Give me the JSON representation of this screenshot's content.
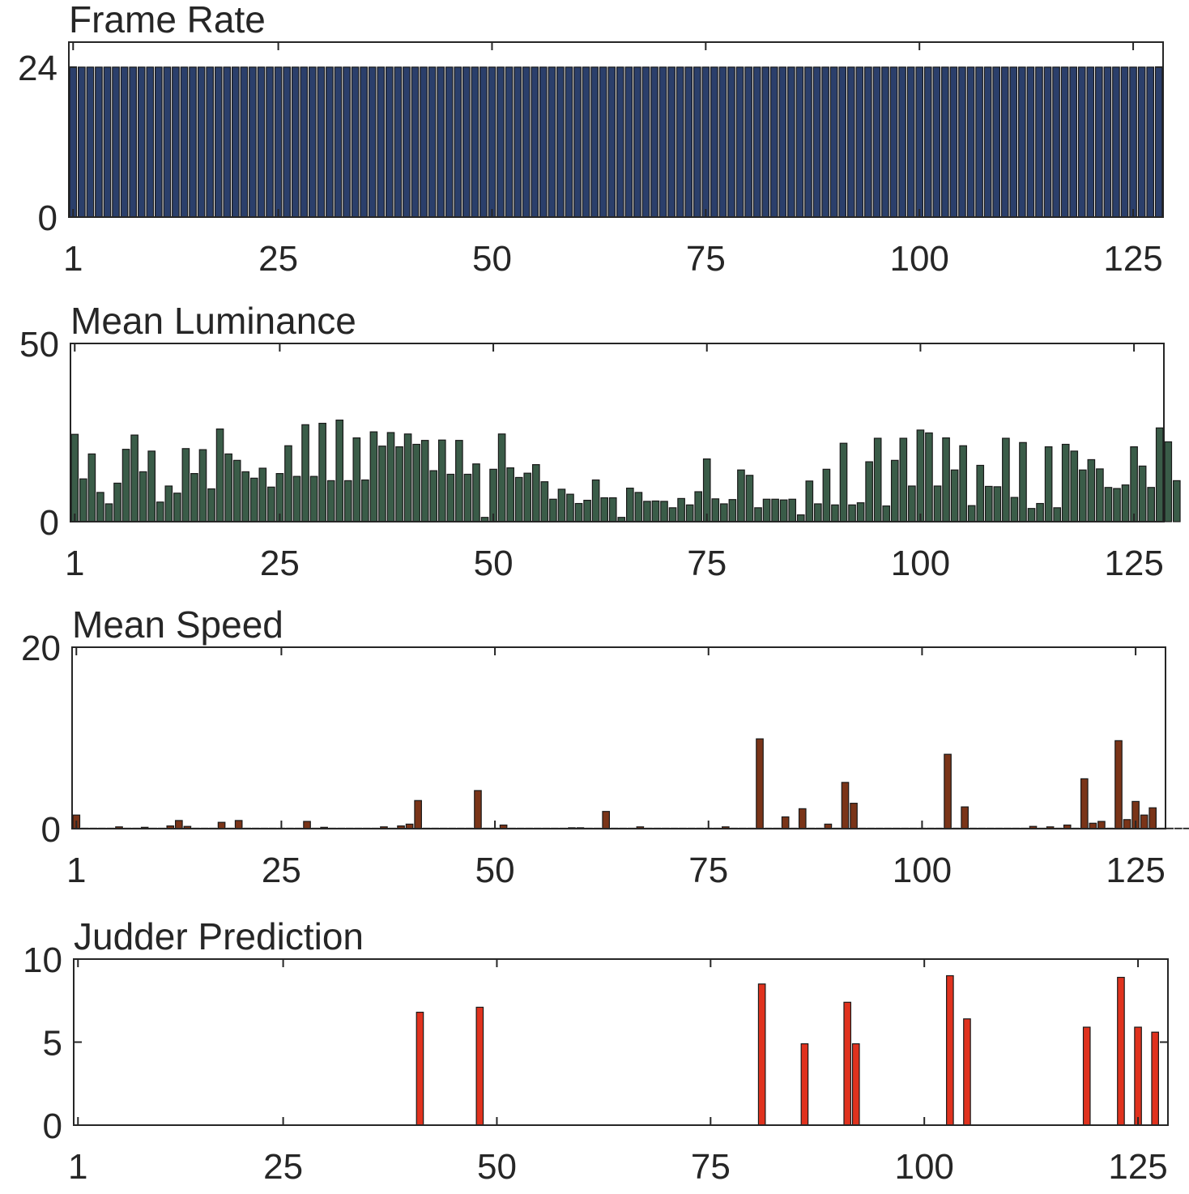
{
  "chart_data": [
    {
      "type": "bar",
      "title": "Frame Rate",
      "xlabel": "",
      "ylabel": "",
      "x_range": [
        1,
        128
      ],
      "ylim": [
        0,
        28
      ],
      "yticks": [
        0,
        24
      ],
      "xticks": [
        1,
        25,
        50,
        75,
        100,
        125
      ],
      "color": "#2b3f6b",
      "values": [
        24,
        24,
        24,
        24,
        24,
        24,
        24,
        24,
        24,
        24,
        24,
        24,
        24,
        24,
        24,
        24,
        24,
        24,
        24,
        24,
        24,
        24,
        24,
        24,
        24,
        24,
        24,
        24,
        24,
        24,
        24,
        24,
        24,
        24,
        24,
        24,
        24,
        24,
        24,
        24,
        24,
        24,
        24,
        24,
        24,
        24,
        24,
        24,
        24,
        24,
        24,
        24,
        24,
        24,
        24,
        24,
        24,
        24,
        24,
        24,
        24,
        24,
        24,
        24,
        24,
        24,
        24,
        24,
        24,
        24,
        24,
        24,
        24,
        24,
        24,
        24,
        24,
        24,
        24,
        24,
        24,
        24,
        24,
        24,
        24,
        24,
        24,
        24,
        24,
        24,
        24,
        24,
        24,
        24,
        24,
        24,
        24,
        24,
        24,
        24,
        24,
        24,
        24,
        24,
        24,
        24,
        24,
        24,
        24,
        24,
        24,
        24,
        24,
        24,
        24,
        24,
        24,
        24,
        24,
        24,
        24,
        24,
        24,
        24,
        24,
        24,
        24,
        24
      ]
    },
    {
      "type": "bar",
      "title": "Mean Luminance",
      "xlabel": "",
      "ylabel": "",
      "x_range": [
        1,
        128
      ],
      "ylim": [
        0,
        50
      ],
      "yticks": [
        0,
        50
      ],
      "xticks": [
        1,
        25,
        50,
        75,
        100,
        125
      ],
      "color": "#3a5c48",
      "values": [
        24.5,
        12,
        19,
        8.2,
        5,
        10.8,
        20.3,
        24.3,
        14,
        19.8,
        5.5,
        10,
        8,
        20.5,
        13.5,
        20.2,
        9.2,
        26,
        19,
        17.2,
        14,
        12.2,
        15,
        9.7,
        13.5,
        21.3,
        12.7,
        27.2,
        12.7,
        27.6,
        11.5,
        28.5,
        11.5,
        23.5,
        11.7,
        25.2,
        21.2,
        25,
        21,
        24.6,
        21.7,
        22.8,
        14.3,
        22.9,
        13.3,
        22.8,
        13.3,
        16.2,
        1.2,
        14.7,
        24.6,
        15.1,
        12.4,
        13.6,
        16,
        11.2,
        6.3,
        9.1,
        7.7,
        5.1,
        6,
        11.7,
        6.7,
        6.7,
        1.2,
        9.4,
        8.2,
        5.7,
        5.8,
        5.7,
        3.9,
        6.5,
        4.7,
        8.4,
        17.6,
        6.4,
        5,
        6.2,
        14.5,
        13,
        3.9,
        6.3,
        6.3,
        6.1,
        6.3,
        1.9,
        11.4,
        5,
        14.7,
        4.7,
        22,
        4.7,
        5.3,
        16.8,
        23.4,
        4.4,
        17.2,
        23.4,
        10,
        25.7,
        24.9,
        10,
        23.5,
        14.5,
        21.3,
        4.5,
        15.8,
        9.9,
        9.8,
        23.4,
        6.8,
        22.2,
        3.7,
        5.1,
        21,
        3.9,
        21.7,
        19.8,
        14.5,
        17.4,
        14.8,
        9.6,
        9.3,
        10.3,
        21,
        15.6,
        9.6,
        26.3,
        22.4,
        11.5
      ]
    },
    {
      "type": "bar",
      "title": "Mean Speed",
      "xlabel": "",
      "ylabel": "",
      "x_range": [
        1,
        128
      ],
      "ylim": [
        0,
        20
      ],
      "yticks": [
        0,
        20
      ],
      "xticks": [
        1,
        25,
        50,
        75,
        100,
        125
      ],
      "color": "#7a3418",
      "values": [
        1.5,
        0.05,
        0.05,
        0.05,
        0.05,
        0.2,
        0.05,
        0.05,
        0.15,
        0.05,
        0.05,
        0.3,
        0.9,
        0.25,
        0.05,
        0.05,
        0.05,
        0.7,
        0.05,
        0.9,
        0.05,
        0.05,
        0.05,
        0.05,
        0.05,
        0.05,
        0.05,
        0.8,
        0.05,
        0.15,
        0.05,
        0.05,
        0.05,
        0.05,
        0.05,
        0.05,
        0.2,
        0.05,
        0.3,
        0.5,
        3.1,
        0.05,
        0.05,
        0.05,
        0.05,
        0.05,
        0.05,
        4.2,
        0.05,
        0.05,
        0.4,
        0.05,
        0.05,
        0.05,
        0.05,
        0.05,
        0.05,
        0.05,
        0.1,
        0.1,
        0.05,
        0.05,
        1.9,
        0.05,
        0.05,
        0.05,
        0.2,
        0.05,
        0.05,
        0.05,
        0.05,
        0.05,
        0.05,
        0.05,
        0.05,
        0.05,
        0.2,
        0.05,
        0.05,
        0.05,
        9.9,
        0.05,
        0.05,
        1.3,
        0.05,
        2.2,
        0.05,
        0.05,
        0.5,
        0.05,
        5.1,
        2.8,
        0.05,
        0.05,
        0.05,
        0.05,
        0.05,
        0.05,
        0.05,
        0.05,
        0.05,
        0.05,
        8.2,
        0.05,
        2.4,
        0.05,
        0.05,
        0.05,
        0.05,
        0.05,
        0.05,
        0.05,
        0.25,
        0.05,
        0.2,
        0.05,
        0.4,
        0.05,
        5.5,
        0.6,
        0.8,
        0.05,
        9.7,
        1,
        3,
        1.5,
        2.3,
        0.05,
        0.05,
        0.05,
        0.05,
        0.4,
        0.05,
        1.1
      ]
    },
    {
      "type": "bar",
      "title": "Judder Prediction",
      "xlabel": "",
      "ylabel": "",
      "x_range": [
        1,
        128
      ],
      "ylim": [
        0,
        10
      ],
      "yticks": [
        0,
        5,
        10
      ],
      "xticks": [
        1,
        25,
        50,
        75,
        100,
        125
      ],
      "color": "#e0321e",
      "values": [
        0,
        0,
        0,
        0,
        0,
        0,
        0,
        0,
        0,
        0,
        0,
        0,
        0,
        0,
        0,
        0,
        0,
        0,
        0,
        0,
        0,
        0,
        0,
        0,
        0,
        0,
        0,
        0,
        0,
        0,
        0,
        0,
        0,
        0,
        0,
        0,
        0,
        0,
        0,
        0,
        6.8,
        0,
        0,
        0,
        0,
        0,
        0,
        7.1,
        0,
        0,
        0,
        0,
        0,
        0,
        0,
        0,
        0,
        0,
        0,
        0,
        0,
        0,
        0,
        0,
        0,
        0,
        0,
        0,
        0,
        0,
        0,
        0,
        0,
        0,
        0,
        0,
        0,
        0,
        0,
        0,
        8.5,
        0,
        0,
        0,
        0,
        4.9,
        0,
        0,
        0,
        0,
        7.4,
        4.9,
        0,
        0,
        0,
        0,
        0,
        0,
        0,
        0,
        0,
        0,
        9,
        0,
        6.4,
        0,
        0,
        0,
        0,
        0,
        0,
        0,
        0,
        0,
        0,
        0,
        0,
        0,
        5.9,
        0,
        0,
        0,
        8.9,
        0,
        5.9,
        0,
        5.6,
        0,
        0,
        0,
        0,
        0,
        0,
        0
      ]
    }
  ]
}
